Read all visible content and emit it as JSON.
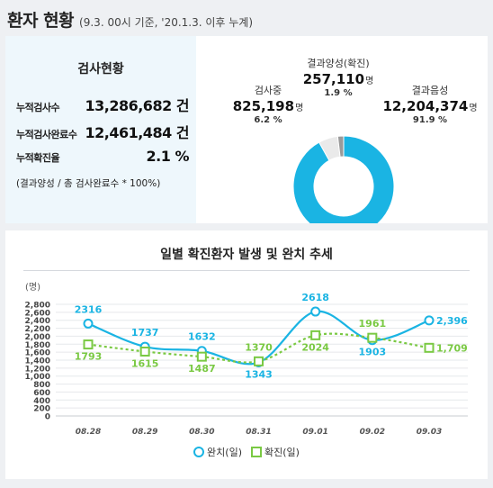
{
  "header": {
    "title": "환자 현황",
    "subtitle": "(9.3. 00시 기준, '20.1.3. 이후 누계)"
  },
  "stats": {
    "heading": "검사현황",
    "rows": [
      {
        "label": "누적검사수",
        "value": "13,286,682 건"
      },
      {
        "label": "누적검사완료수",
        "value": "12,461,484 건"
      },
      {
        "label": "누적확진율",
        "value": "2.1 %"
      }
    ],
    "note": "(결과양성 / 총 검사완료수 * 100%)"
  },
  "pie": {
    "unit": "명",
    "slices": [
      {
        "name": "결과음성",
        "value": "12,204,374",
        "pct": "91.9 %",
        "fraction": 0.919,
        "color": "#1ab4e3"
      },
      {
        "name": "검사중",
        "value": "825,198",
        "pct": "6.2 %",
        "fraction": 0.062,
        "color": "#eaeaea"
      },
      {
        "name": "결과양성(확진)",
        "value": "257,110",
        "pct": "1.9 %",
        "fraction": 0.019,
        "color": "#9a9a9a"
      }
    ]
  },
  "chart": {
    "title": "일별 확진환자 발생 및 완치 추세",
    "legend": [
      "완치(일)",
      "확진(일)"
    ]
  },
  "chart_data": {
    "type": "line",
    "title": "일별 확진환자 발생 및 완치 추세",
    "ylabel": "(명)",
    "ylim": [
      0,
      2800
    ],
    "yticks": [
      "0",
      "200",
      "400",
      "600",
      "800",
      "1,000",
      "1,200",
      "1,400",
      "1,600",
      "1,800",
      "2,000",
      "2,200",
      "2,400",
      "2,600",
      "2,800"
    ],
    "categories": [
      "08.28",
      "08.29",
      "08.30",
      "08.31",
      "09.01",
      "09.02",
      "09.03"
    ],
    "grid": true,
    "legend_position": "bottom",
    "series": [
      {
        "name": "완치(일)",
        "values": [
          2316,
          1737,
          1632,
          1343,
          2618,
          1903,
          2396
        ],
        "labels": [
          "2316",
          "1737",
          "1632",
          "1343",
          "2618",
          "1903",
          "2,396"
        ],
        "color": "#1ab4e3",
        "marker": "circle"
      },
      {
        "name": "확진(일)",
        "values": [
          1793,
          1615,
          1487,
          1370,
          2024,
          1961,
          1709
        ],
        "labels": [
          "1793",
          "1615",
          "1487",
          "1370",
          "2024",
          "1961",
          "1,709"
        ],
        "color": "#7ac943",
        "marker": "square"
      }
    ]
  }
}
